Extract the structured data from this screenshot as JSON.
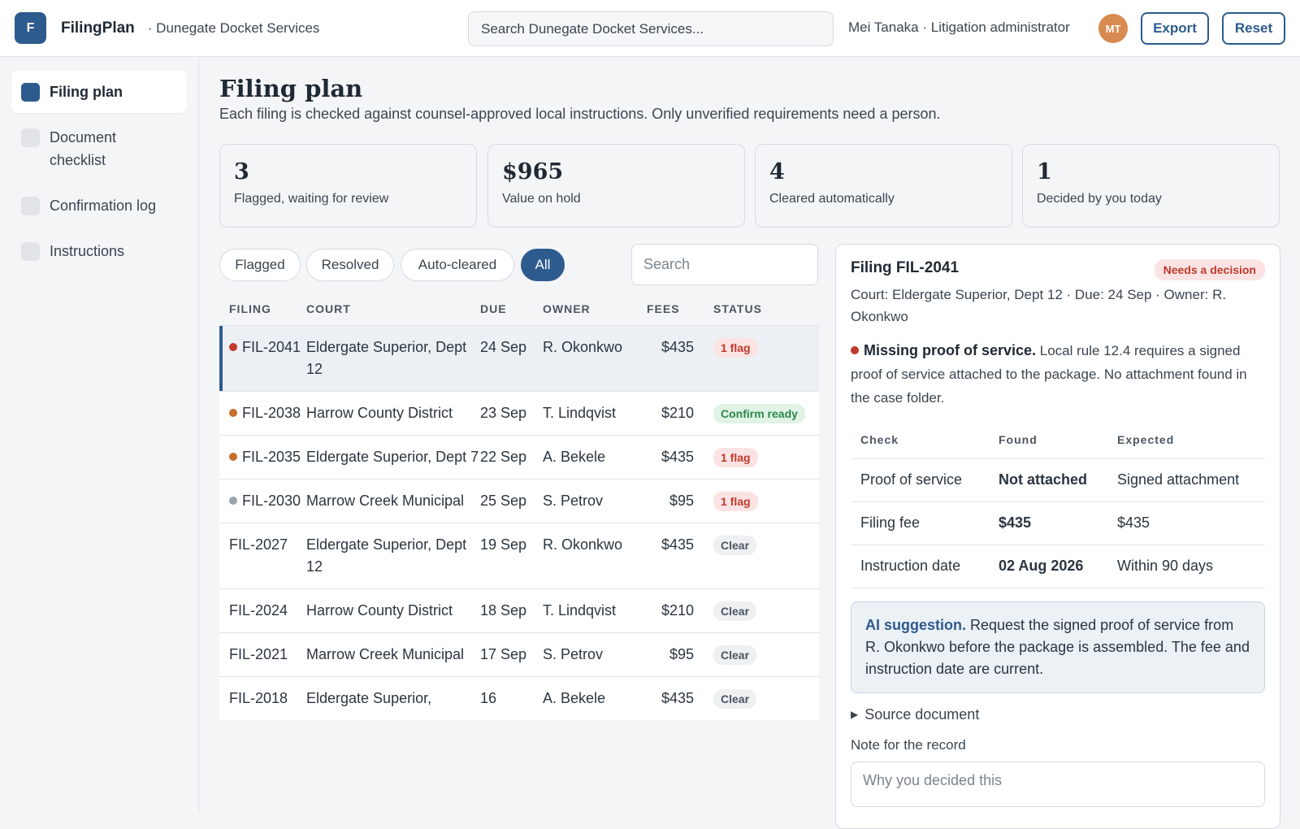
{
  "app": {
    "logo_letter": "F",
    "name": "FilingPlan",
    "org": "· Dunegate Docket Services"
  },
  "header": {
    "search_placeholder": "Search Dunegate Docket Services...",
    "user": "Mei Tanaka · Litigation administrator",
    "avatar_initials": "MT",
    "export_label": "Export",
    "reset_label": "Reset"
  },
  "sidebar": {
    "items": [
      {
        "label": "Filing plan",
        "active": true
      },
      {
        "label": "Document checklist",
        "active": false
      },
      {
        "label": "Confirmation log",
        "active": false
      },
      {
        "label": "Instructions",
        "active": false
      }
    ]
  },
  "page": {
    "title": "Filing plan",
    "subtitle": "Each filing is checked against counsel-approved local instructions. Only unverified requirements need a person."
  },
  "stats": [
    {
      "value": "3",
      "label": "Flagged, waiting for review"
    },
    {
      "value": "$965",
      "label": "Value on hold"
    },
    {
      "value": "4",
      "label": "Cleared automatically"
    },
    {
      "value": "1",
      "label": "Decided by you today"
    }
  ],
  "filters": {
    "chips": [
      "Flagged",
      "Resolved",
      "Auto-cleared",
      "All"
    ],
    "active": "All",
    "search_placeholder": "Search"
  },
  "table": {
    "columns": [
      "Filing",
      "Court",
      "Due",
      "Owner",
      "Fees",
      "Status"
    ],
    "rows": [
      {
        "filing": "FIL-2041",
        "court": "Eldergate Superior, Dept 12",
        "due": "24 Sep",
        "owner": "R. Okonkwo",
        "fees": "$435",
        "status": "1 flag",
        "status_kind": "flag",
        "dot": "#c0392b",
        "selected": true
      },
      {
        "filing": "FIL-2038",
        "court": "Harrow County District",
        "due": "23 Sep",
        "owner": "T. Lindqvist",
        "fees": "$210",
        "status": "Confirm ready",
        "status_kind": "ready",
        "dot": "#c8702a",
        "selected": false
      },
      {
        "filing": "FIL-2035",
        "court": "Eldergate Superior, Dept 7",
        "due": "22 Sep",
        "owner": "A. Bekele",
        "fees": "$435",
        "status": "1 flag",
        "status_kind": "flag",
        "dot": "#c8702a",
        "selected": false
      },
      {
        "filing": "FIL-2030",
        "court": "Marrow Creek Municipal",
        "due": "25 Sep",
        "owner": "S. Petrov",
        "fees": "$95",
        "status": "1 flag",
        "status_kind": "flag",
        "dot": "#9aa3ad",
        "selected": false
      },
      {
        "filing": "FIL-2027",
        "court": "Eldergate Superior, Dept 12",
        "due": "19 Sep",
        "owner": "R. Okonkwo",
        "fees": "$435",
        "status": "Clear",
        "status_kind": "clear",
        "dot": "",
        "selected": false
      },
      {
        "filing": "FIL-2024",
        "court": "Harrow County District",
        "due": "18 Sep",
        "owner": "T. Lindqvist",
        "fees": "$210",
        "status": "Clear",
        "status_kind": "clear",
        "dot": "",
        "selected": false
      },
      {
        "filing": "FIL-2021",
        "court": "Marrow Creek Municipal",
        "due": "17 Sep",
        "owner": "S. Petrov",
        "fees": "$95",
        "status": "Clear",
        "status_kind": "clear",
        "dot": "",
        "selected": false
      },
      {
        "filing": "FIL-2018",
        "court": "Eldergate Superior,",
        "due": "16",
        "owner": "A. Bekele",
        "fees": "$435",
        "status": "Clear",
        "status_kind": "clear",
        "dot": "",
        "selected": false
      }
    ]
  },
  "detail": {
    "title": "Filing FIL-2041",
    "badge": "Needs a decision",
    "meta": "Court: Eldergate Superior, Dept 12 · Due: 24 Sep · Owner: R. Okonkwo",
    "issue_title": "Missing proof of service.",
    "issue_text": " Local rule 12.4 requires a signed proof of service attached to the package. No attachment found in the case folder.",
    "check_columns": [
      "Check",
      "Found",
      "Expected"
    ],
    "checks": [
      {
        "check": "Proof of service",
        "found": "Not attached",
        "expected": "Signed attachment",
        "ok": false
      },
      {
        "check": "Filing fee",
        "found": "$435",
        "expected": "$435",
        "ok": true
      },
      {
        "check": "Instruction date",
        "found": "02 Aug 2026",
        "expected": "Within 90 days",
        "ok": true
      }
    ],
    "ai_label": "AI suggestion.",
    "ai_text": " Request the signed proof of service from R. Okonkwo before the package is assembled. The fee and instruction date are current.",
    "source_label": "Source document",
    "note_label": "Note for the record",
    "note_placeholder": "Why you decided this"
  },
  "colors": {
    "accent": "#2d5b8d",
    "flag": "#c0392b",
    "ok": "#2a8a4a",
    "avatar": "#d88a50"
  }
}
